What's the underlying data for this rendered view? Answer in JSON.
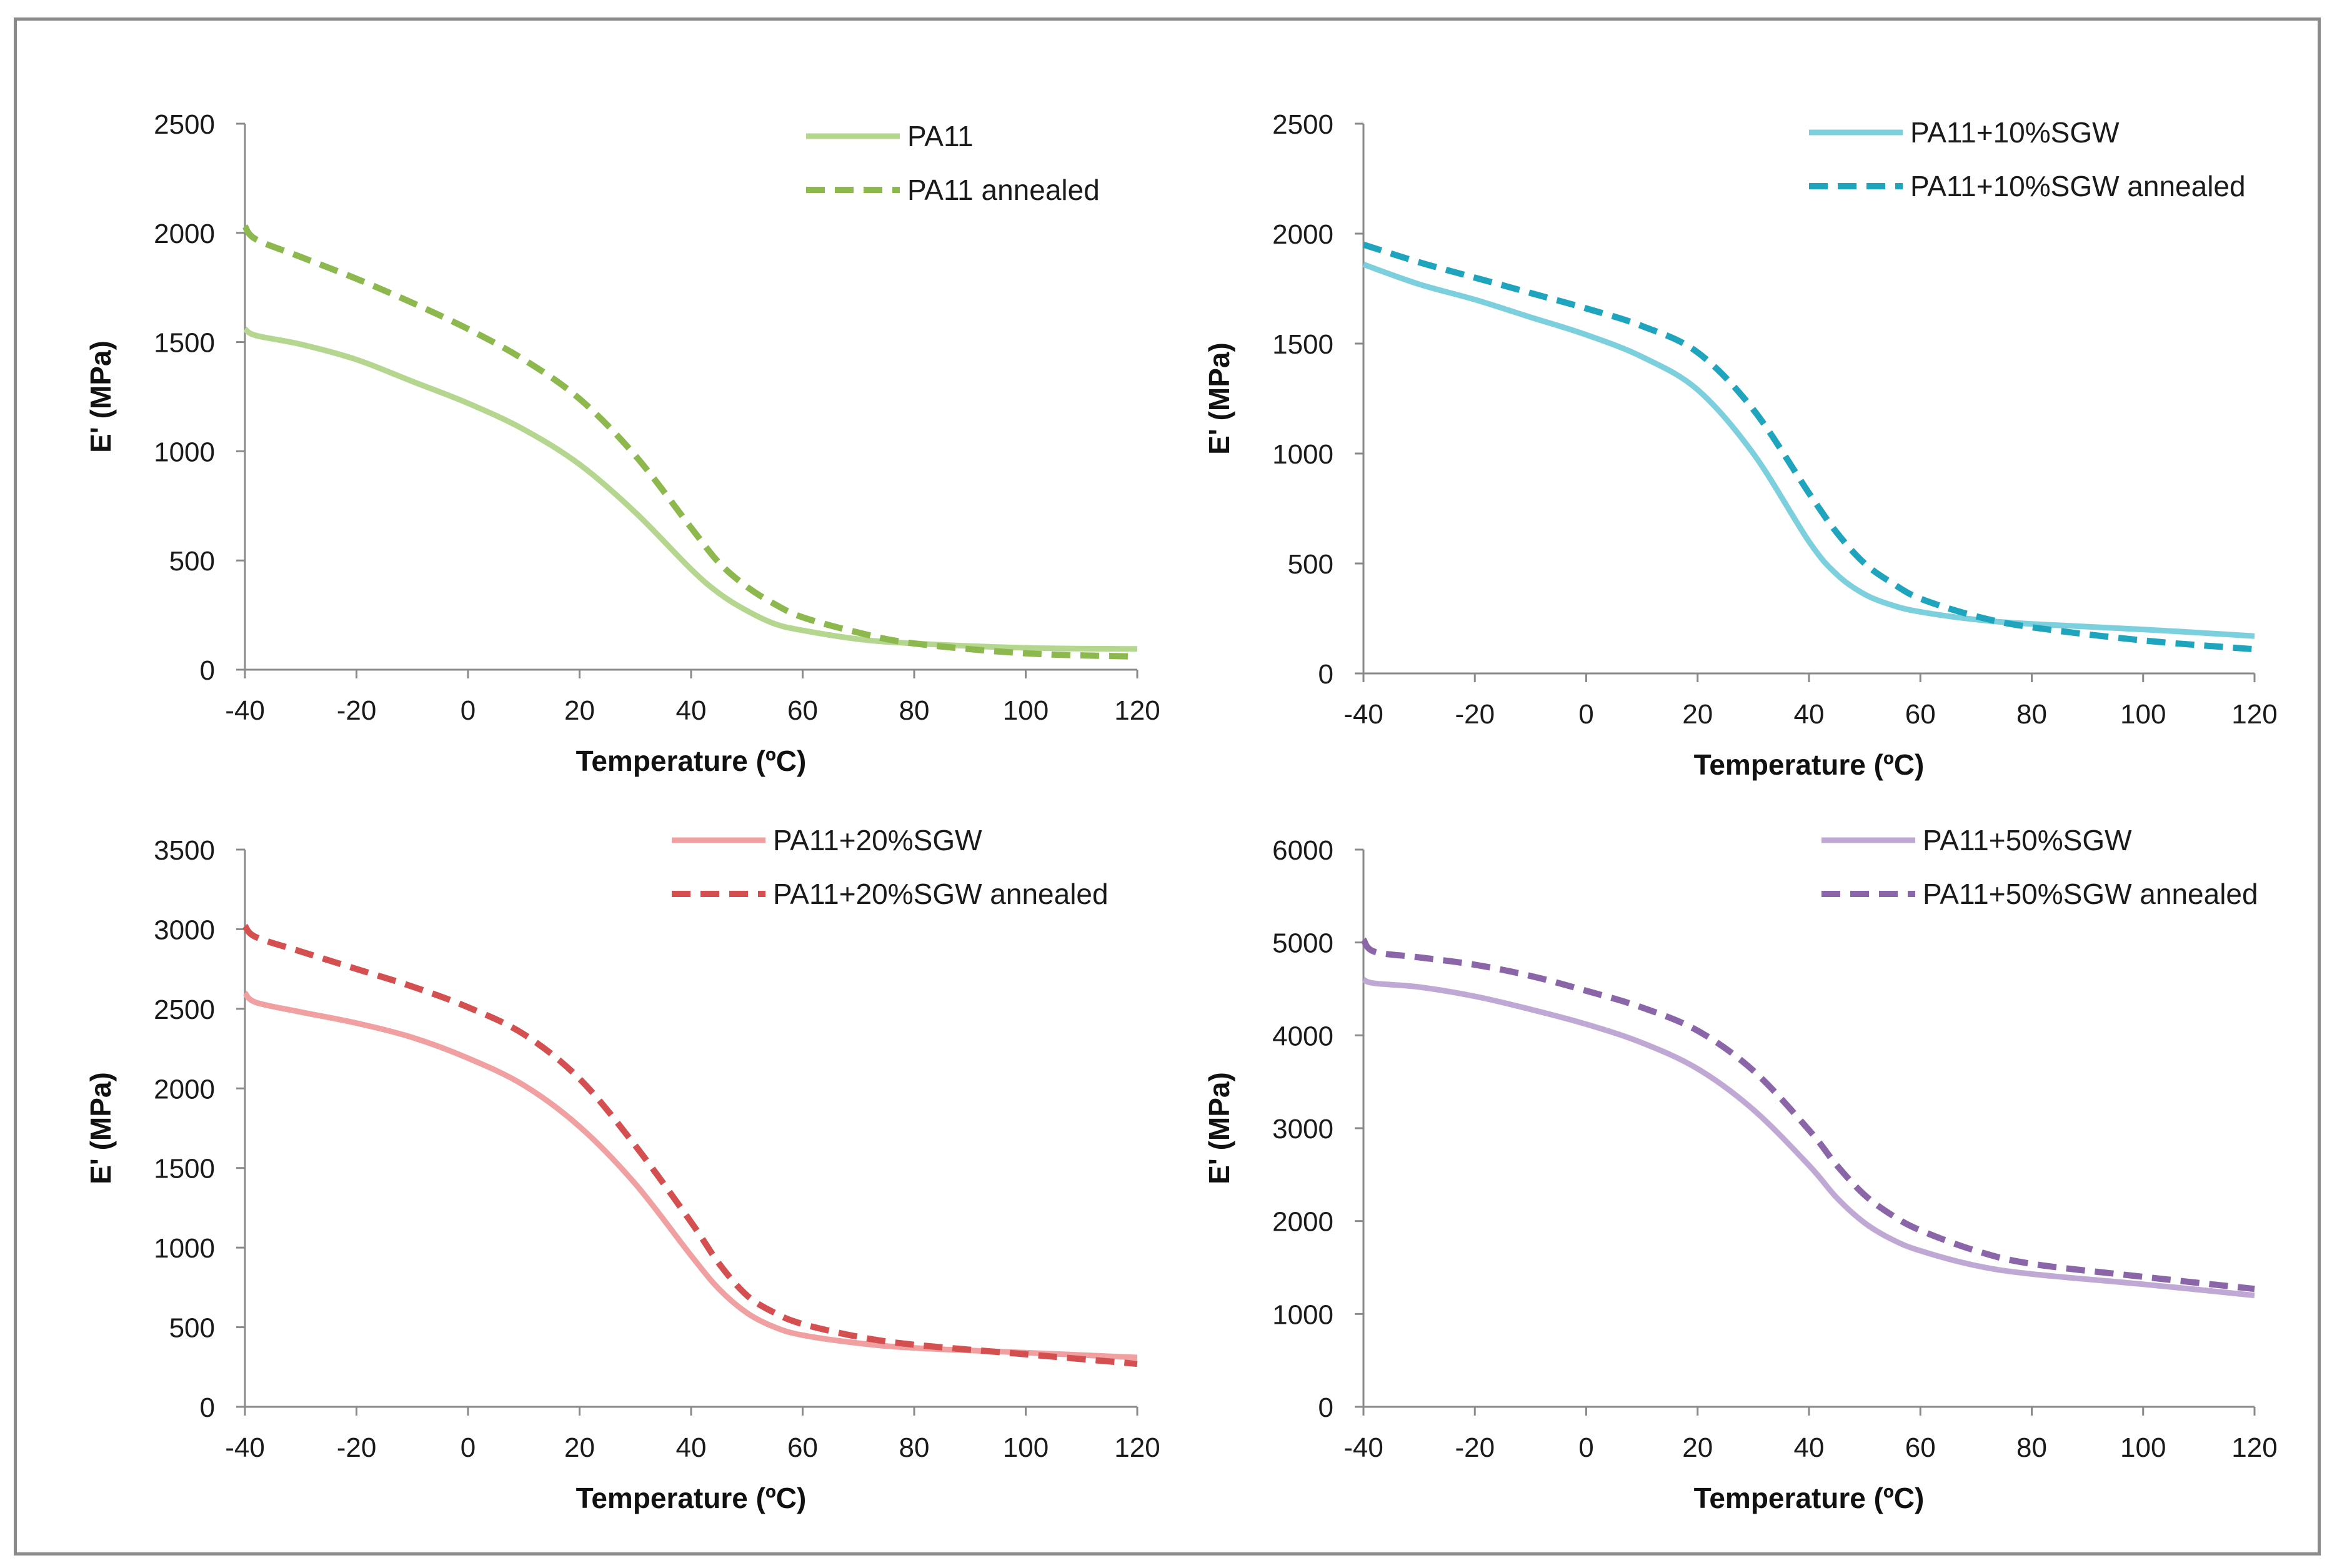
{
  "chart_data": [
    {
      "type": "line",
      "xlabel": "Temperature (ºC)",
      "ylabel": "E' (MPa)",
      "xlim": [
        -40,
        120
      ],
      "ylim": [
        0,
        2500
      ],
      "xticks": [
        -40,
        -20,
        0,
        20,
        40,
        60,
        80,
        100,
        120
      ],
      "yticks": [
        0,
        500,
        1000,
        1500,
        2000,
        2500
      ],
      "legend": "top-right",
      "series": [
        {
          "name": "PA11",
          "color": "#b4d68e",
          "style": "solid",
          "x": [
            -40,
            -38,
            -30,
            -20,
            -10,
            0,
            10,
            20,
            30,
            40,
            45,
            50,
            55,
            60,
            70,
            80,
            100,
            120
          ],
          "y": [
            1560,
            1530,
            1490,
            1420,
            1320,
            1220,
            1100,
            940,
            720,
            460,
            350,
            270,
            210,
            180,
            140,
            120,
            100,
            95
          ]
        },
        {
          "name": "PA11 annealed",
          "color": "#8cb84e",
          "style": "dashed",
          "x": [
            -40,
            -38,
            -30,
            -20,
            -10,
            0,
            10,
            20,
            30,
            40,
            45,
            50,
            55,
            60,
            70,
            80,
            100,
            120
          ],
          "y": [
            2030,
            1970,
            1890,
            1790,
            1680,
            1560,
            1420,
            1240,
            980,
            650,
            490,
            380,
            300,
            240,
            170,
            120,
            75,
            60
          ]
        }
      ]
    },
    {
      "type": "line",
      "xlabel": "Temperature (ºC)",
      "ylabel": "E' (MPa)",
      "xlim": [
        -40,
        120
      ],
      "ylim": [
        0,
        2500
      ],
      "xticks": [
        -40,
        -20,
        0,
        20,
        40,
        60,
        80,
        100,
        120
      ],
      "yticks": [
        0,
        500,
        1000,
        1500,
        2000,
        2500
      ],
      "legend": "top-right",
      "series": [
        {
          "name": "PA11+10%SGW",
          "color": "#7ccfdc",
          "style": "solid",
          "x": [
            -40,
            -30,
            -20,
            -10,
            0,
            10,
            20,
            30,
            40,
            45,
            50,
            55,
            60,
            70,
            80,
            100,
            120
          ],
          "y": [
            1860,
            1770,
            1700,
            1620,
            1540,
            1440,
            1290,
            1000,
            600,
            450,
            360,
            310,
            280,
            245,
            225,
            200,
            170
          ]
        },
        {
          "name": "PA11+10%SGW annealed",
          "color": "#1ea4bc",
          "style": "dashed",
          "x": [
            -40,
            -30,
            -20,
            -10,
            0,
            10,
            20,
            30,
            40,
            45,
            50,
            55,
            60,
            70,
            80,
            100,
            120
          ],
          "y": [
            1950,
            1870,
            1800,
            1730,
            1660,
            1580,
            1460,
            1200,
            820,
            640,
            500,
            410,
            340,
            260,
            210,
            150,
            110
          ]
        }
      ]
    },
    {
      "type": "line",
      "xlabel": "Temperature (ºC)",
      "ylabel": "E' (MPa)",
      "xlim": [
        -40,
        120
      ],
      "ylim": [
        0,
        3500
      ],
      "xticks": [
        -40,
        -20,
        0,
        20,
        40,
        60,
        80,
        100,
        120
      ],
      "yticks": [
        0,
        500,
        1000,
        1500,
        2000,
        2500,
        3000,
        3500
      ],
      "legend": "top-right",
      "series": [
        {
          "name": "PA11+20%SGW",
          "color": "#f0a0a0",
          "style": "solid",
          "x": [
            -40,
            -38,
            -30,
            -20,
            -10,
            0,
            10,
            20,
            30,
            40,
            45,
            50,
            55,
            60,
            70,
            80,
            100,
            120
          ],
          "y": [
            2600,
            2540,
            2480,
            2410,
            2320,
            2190,
            2020,
            1760,
            1400,
            950,
            740,
            590,
            500,
            450,
            400,
            370,
            340,
            310
          ]
        },
        {
          "name": "PA11+20%SGW annealed",
          "color": "#d45050",
          "style": "dashed",
          "x": [
            -40,
            -38,
            -30,
            -20,
            -10,
            0,
            10,
            20,
            30,
            40,
            45,
            50,
            55,
            60,
            70,
            80,
            100,
            120
          ],
          "y": [
            3020,
            2950,
            2860,
            2750,
            2640,
            2510,
            2340,
            2060,
            1640,
            1160,
            900,
            700,
            590,
            520,
            440,
            390,
            330,
            270
          ]
        }
      ]
    },
    {
      "type": "line",
      "xlabel": "Temperature (ºC)",
      "ylabel": "E' (MPa)",
      "xlim": [
        -40,
        120
      ],
      "ylim": [
        0,
        6000
      ],
      "xticks": [
        -40,
        -20,
        0,
        20,
        40,
        60,
        80,
        100,
        120
      ],
      "yticks": [
        0,
        1000,
        2000,
        3000,
        4000,
        5000,
        6000
      ],
      "legend": "top-right",
      "series": [
        {
          "name": "PA11+50%SGW",
          "color": "#c0a8d4",
          "style": "solid",
          "x": [
            -40,
            -38,
            -30,
            -20,
            -10,
            0,
            10,
            20,
            30,
            40,
            45,
            50,
            55,
            60,
            70,
            80,
            100,
            120
          ],
          "y": [
            4600,
            4560,
            4520,
            4420,
            4280,
            4120,
            3920,
            3640,
            3200,
            2600,
            2250,
            1980,
            1800,
            1680,
            1520,
            1430,
            1320,
            1200
          ]
        },
        {
          "name": "PA11+50%SGW annealed",
          "color": "#8a66a8",
          "style": "dashed",
          "x": [
            -40,
            -38,
            -30,
            -20,
            -10,
            0,
            10,
            20,
            30,
            40,
            45,
            50,
            55,
            60,
            70,
            80,
            100,
            120
          ],
          "y": [
            5030,
            4900,
            4840,
            4760,
            4640,
            4480,
            4300,
            4050,
            3620,
            2980,
            2600,
            2280,
            2060,
            1900,
            1680,
            1540,
            1400,
            1270
          ]
        }
      ]
    }
  ]
}
